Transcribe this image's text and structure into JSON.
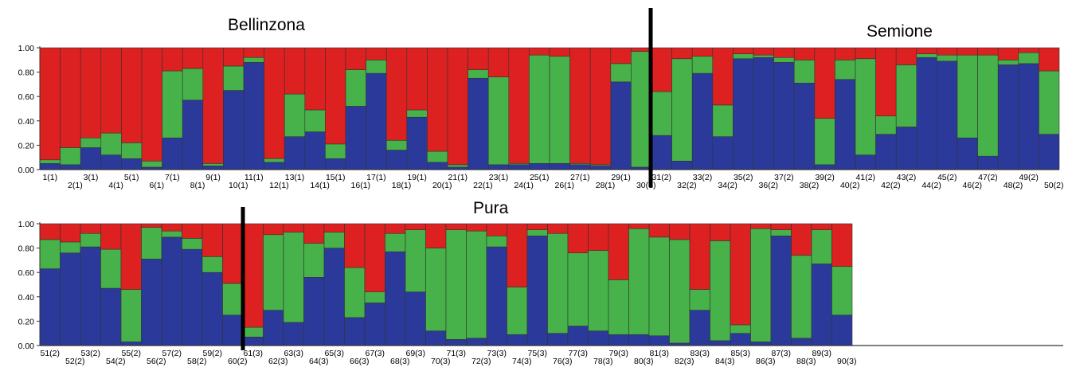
{
  "chart_data": {
    "type": "stacked-bar",
    "ylim": [
      0,
      1
    ],
    "ytick_labels": [
      "0.00",
      "0.20",
      "0.40",
      "0.60",
      "0.80",
      "1.00"
    ],
    "colors": {
      "cluster1": "#2b3a9a",
      "cluster2": "#47b24a",
      "cluster3": "#dd2020"
    },
    "population_labels": [
      "Bellinzona",
      "Semione",
      "Pura"
    ],
    "panels": [
      {
        "categories": [
          "1(1)",
          "2(1)",
          "3(1)",
          "4(1)",
          "5(1)",
          "6(1)",
          "7(1)",
          "8(1)",
          "9(1)",
          "10(1)",
          "11(1)",
          "12(1)",
          "13(1)",
          "14(1)",
          "15(1)",
          "16(1)",
          "17(1)",
          "18(1)",
          "19(1)",
          "20(1)",
          "21(1)",
          "22(1)",
          "23(1)",
          "24(1)",
          "25(1)",
          "26(1)",
          "27(1)",
          "28(1)",
          "29(1)",
          "30(1)",
          "31(2)",
          "32(2)",
          "33(2)",
          "34(2)",
          "35(2)",
          "36(2)",
          "37(2)",
          "38(2)",
          "39(2)",
          "40(2)",
          "41(2)",
          "42(2)",
          "43(2)",
          "44(2)",
          "45(2)",
          "46(2)",
          "47(2)",
          "48(2)",
          "49(2)",
          "50(2)"
        ],
        "series": [
          {
            "values": [
              0.05,
              0.04,
              0.18,
              0.12,
              0.09,
              0.02,
              0.26,
              0.57,
              0.03,
              0.65,
              0.88,
              0.06,
              0.27,
              0.31,
              0.09,
              0.52,
              0.79,
              0.16,
              0.43,
              0.06,
              0.02,
              0.75,
              0.04,
              0.04,
              0.05,
              0.05,
              0.04,
              0.03,
              0.72,
              0.02,
              0.28,
              0.07,
              0.79,
              0.27,
              0.91,
              0.92,
              0.88,
              0.71,
              0.04,
              0.74,
              0.12,
              0.29,
              0.35,
              0.92,
              0.89,
              0.26,
              0.11,
              0.86,
              0.87,
              0.29
            ]
          },
          {
            "values": [
              0.03,
              0.14,
              0.08,
              0.18,
              0.13,
              0.05,
              0.55,
              0.26,
              0.02,
              0.2,
              0.04,
              0.03,
              0.35,
              0.18,
              0.12,
              0.3,
              0.11,
              0.08,
              0.06,
              0.09,
              0.02,
              0.07,
              0.72,
              0.01,
              0.89,
              0.88,
              0.01,
              0.01,
              0.15,
              0.95,
              0.36,
              0.84,
              0.14,
              0.26,
              0.04,
              0.02,
              0.04,
              0.19,
              0.38,
              0.16,
              0.79,
              0.15,
              0.51,
              0.03,
              0.05,
              0.68,
              0.83,
              0.04,
              0.09,
              0.52
            ]
          },
          {
            "values": [
              0.92,
              0.82,
              0.74,
              0.7,
              0.78,
              0.93,
              0.19,
              0.17,
              0.95,
              0.15,
              0.08,
              0.91,
              0.38,
              0.51,
              0.79,
              0.18,
              0.1,
              0.76,
              0.51,
              0.85,
              0.96,
              0.18,
              0.24,
              0.95,
              0.06,
              0.07,
              0.95,
              0.96,
              0.13,
              0.03,
              0.36,
              0.09,
              0.07,
              0.47,
              0.05,
              0.06,
              0.08,
              0.1,
              0.58,
              0.1,
              0.09,
              0.56,
              0.14,
              0.05,
              0.06,
              0.06,
              0.06,
              0.1,
              0.04,
              0.19
            ]
          }
        ]
      },
      {
        "categories": [
          "51(2)",
          "52(2)",
          "53(2)",
          "54(2)",
          "55(2)",
          "56(2)",
          "57(2)",
          "58(2)",
          "59(2)",
          "60(2)",
          "61(3)",
          "62(3)",
          "63(3)",
          "64(3)",
          "65(3)",
          "66(3)",
          "67(3)",
          "68(3)",
          "69(3)",
          "70(3)",
          "71(3)",
          "72(3)",
          "73(3)",
          "74(3)",
          "75(3)",
          "76(3)",
          "77(3)",
          "78(3)",
          "79(3)",
          "80(3)",
          "81(3)",
          "82(3)",
          "83(3)",
          "84(3)",
          "85(3)",
          "86(3)",
          "87(3)",
          "88(3)",
          "89(3)",
          "90(3)"
        ],
        "series": [
          {
            "values": [
              0.63,
              0.76,
              0.81,
              0.47,
              0.03,
              0.71,
              0.89,
              0.79,
              0.6,
              0.25,
              0.07,
              0.29,
              0.19,
              0.56,
              0.8,
              0.23,
              0.35,
              0.77,
              0.44,
              0.12,
              0.05,
              0.06,
              0.81,
              0.09,
              0.9,
              0.1,
              0.16,
              0.12,
              0.09,
              0.09,
              0.08,
              0.02,
              0.29,
              0.04,
              0.1,
              0.03,
              0.9,
              0.06,
              0.67,
              0.25
            ]
          },
          {
            "values": [
              0.24,
              0.09,
              0.11,
              0.32,
              0.43,
              0.26,
              0.05,
              0.09,
              0.13,
              0.26,
              0.08,
              0.62,
              0.74,
              0.28,
              0.13,
              0.41,
              0.09,
              0.15,
              0.51,
              0.68,
              0.9,
              0.88,
              0.09,
              0.39,
              0.05,
              0.82,
              0.6,
              0.66,
              0.45,
              0.87,
              0.81,
              0.85,
              0.17,
              0.82,
              0.07,
              0.93,
              0.05,
              0.68,
              0.28,
              0.4
            ]
          },
          {
            "values": [
              0.13,
              0.15,
              0.08,
              0.21,
              0.54,
              0.03,
              0.06,
              0.12,
              0.27,
              0.49,
              0.85,
              0.09,
              0.07,
              0.16,
              0.07,
              0.36,
              0.56,
              0.08,
              0.05,
              0.2,
              0.05,
              0.06,
              0.1,
              0.52,
              0.05,
              0.08,
              0.24,
              0.22,
              0.46,
              0.04,
              0.11,
              0.13,
              0.54,
              0.14,
              0.83,
              0.04,
              0.05,
              0.26,
              0.05,
              0.35
            ]
          }
        ]
      }
    ]
  }
}
